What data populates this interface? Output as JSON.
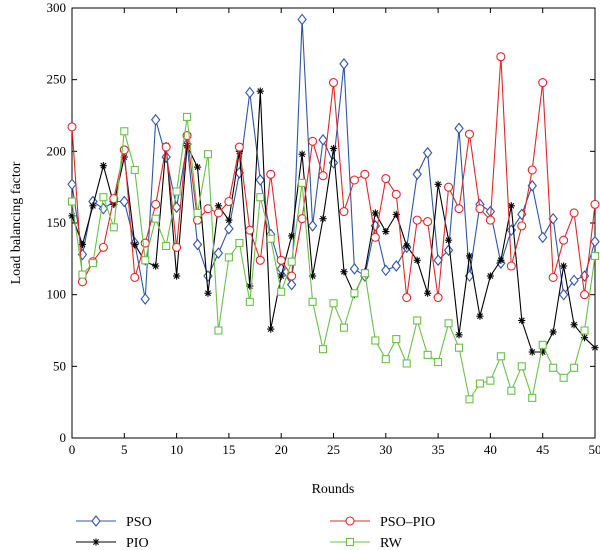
{
  "chart_data": {
    "type": "line",
    "title": "",
    "xlabel": "Rounds",
    "ylabel": "Load balancing factor",
    "xlim": [
      0,
      50
    ],
    "ylim": [
      0,
      300
    ],
    "xticks": [
      0,
      5,
      10,
      15,
      20,
      25,
      30,
      35,
      40,
      45,
      50
    ],
    "yticks": [
      0,
      50,
      100,
      150,
      200,
      250,
      300
    ],
    "grid": false,
    "legend_position": "bottom",
    "series": [
      {
        "name": "PSO",
        "color": "#2f55a4",
        "marker": "diamond",
        "x": [
          0,
          1,
          2,
          3,
          4,
          5,
          6,
          7,
          8,
          9,
          10,
          11,
          12,
          13,
          14,
          15,
          16,
          17,
          18,
          19,
          20,
          21,
          22,
          23,
          24,
          25,
          26,
          27,
          28,
          29,
          30,
          31,
          32,
          33,
          34,
          35,
          36,
          37,
          38,
          39,
          40,
          41,
          42,
          43,
          44,
          45,
          46,
          47,
          48,
          49,
          50
        ],
        "y": [
          177,
          128,
          165,
          160,
          165,
          165,
          136,
          97,
          222,
          196,
          161,
          205,
          135,
          113,
          129,
          146,
          185,
          241,
          180,
          142,
          118,
          107,
          292,
          148,
          208,
          192,
          261,
          118,
          113,
          148,
          117,
          120,
          133,
          184,
          199,
          124,
          131,
          216,
          113,
          163,
          158,
          122,
          145,
          156,
          176,
          140,
          153,
          100,
          110,
          113,
          137
        ]
      },
      {
        "name": "PIO",
        "color": "#000000",
        "marker": "asterisk",
        "x": [
          0,
          1,
          2,
          3,
          4,
          5,
          6,
          7,
          8,
          9,
          10,
          11,
          12,
          13,
          14,
          15,
          16,
          17,
          18,
          19,
          20,
          21,
          22,
          23,
          24,
          25,
          26,
          27,
          28,
          29,
          30,
          31,
          32,
          33,
          34,
          35,
          36,
          37,
          38,
          39,
          40,
          41,
          42,
          43,
          44,
          45,
          46,
          47,
          48,
          49,
          50
        ],
        "y": [
          155,
          135,
          162,
          190,
          163,
          196,
          135,
          123,
          120,
          204,
          113,
          204,
          189,
          101,
          162,
          152,
          200,
          106,
          242,
          76,
          113,
          141,
          198,
          113,
          153,
          202,
          116,
          100,
          116,
          157,
          144,
          156,
          134,
          124,
          101,
          177,
          138,
          72,
          127,
          85,
          113,
          124,
          162,
          82,
          60,
          60,
          74,
          120,
          79,
          70,
          63
        ]
      },
      {
        "name": "PSO–PIO",
        "color": "#e0282a",
        "marker": "circle",
        "x": [
          0,
          1,
          2,
          3,
          4,
          5,
          6,
          7,
          8,
          9,
          10,
          11,
          12,
          13,
          14,
          15,
          16,
          17,
          18,
          19,
          20,
          21,
          22,
          23,
          24,
          25,
          26,
          27,
          28,
          29,
          30,
          31,
          32,
          33,
          34,
          35,
          36,
          37,
          38,
          39,
          40,
          41,
          42,
          43,
          44,
          45,
          46,
          47,
          48,
          49,
          50
        ],
        "y": [
          217,
          109,
          123,
          133,
          167,
          201,
          112,
          136,
          163,
          203,
          133,
          211,
          152,
          160,
          157,
          165,
          203,
          145,
          124,
          184,
          124,
          113,
          153,
          207,
          183,
          248,
          158,
          180,
          184,
          140,
          181,
          170,
          98,
          152,
          151,
          98,
          175,
          160,
          212,
          160,
          152,
          266,
          120,
          148,
          187,
          248,
          112,
          138,
          157,
          100,
          163
        ]
      },
      {
        "name": "RW",
        "color": "#6cc04a",
        "marker": "square",
        "x": [
          0,
          1,
          2,
          3,
          4,
          5,
          6,
          7,
          8,
          9,
          10,
          11,
          12,
          13,
          14,
          15,
          16,
          17,
          18,
          19,
          20,
          21,
          22,
          23,
          24,
          25,
          26,
          27,
          28,
          29,
          30,
          31,
          32,
          33,
          34,
          35,
          36,
          37,
          38,
          39,
          40,
          41,
          42,
          43,
          44,
          45,
          46,
          47,
          48,
          49,
          50
        ],
        "y": [
          165,
          114,
          122,
          168,
          147,
          214,
          187,
          124,
          153,
          134,
          172,
          224,
          157,
          198,
          75,
          126,
          136,
          95,
          168,
          139,
          102,
          123,
          178,
          95,
          62,
          94,
          77,
          101,
          115,
          68,
          55,
          69,
          52,
          82,
          58,
          53,
          80,
          63,
          27,
          38,
          40,
          57,
          33,
          50,
          28,
          65,
          49,
          42,
          49,
          75,
          127
        ]
      }
    ]
  }
}
